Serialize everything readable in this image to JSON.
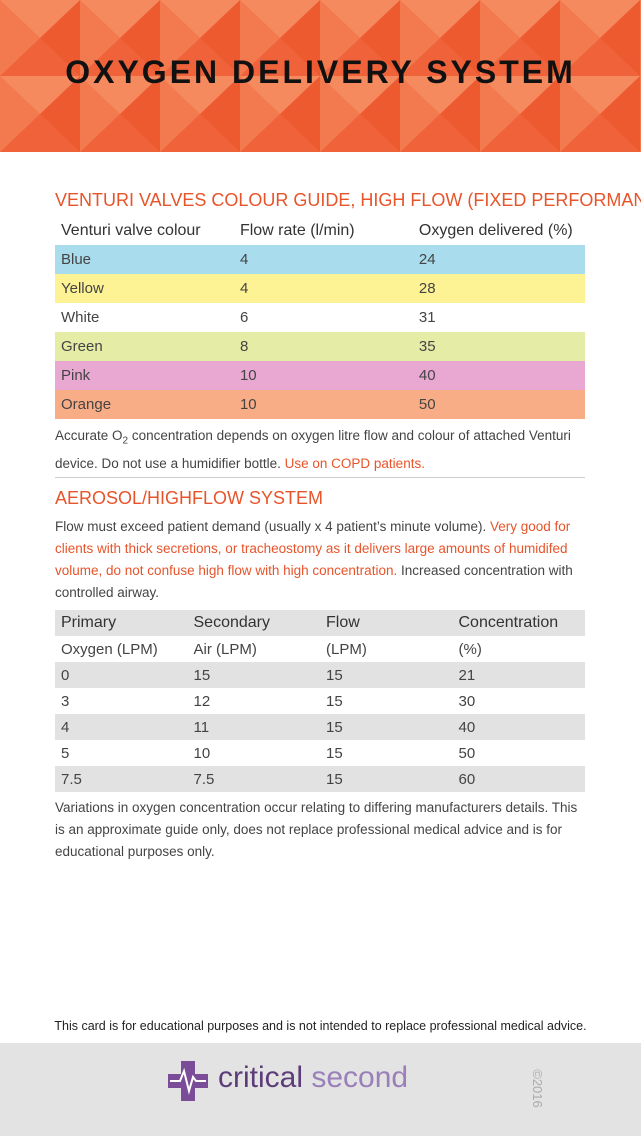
{
  "header": {
    "title": "OXYGEN DELIVERY SYSTEM"
  },
  "venturi": {
    "title": "VENTURI VALVES COLOUR GUIDE, HIGH FLOW (FIXED PERFORMANCE)",
    "columns": [
      "Venturi valve colour",
      "Flow rate (l/min)",
      "Oxygen delivered (%)"
    ],
    "rows": [
      [
        "Blue",
        "4",
        "24"
      ],
      [
        "Yellow",
        "4",
        "28"
      ],
      [
        "White",
        "6",
        "31"
      ],
      [
        "Green",
        "8",
        "35"
      ],
      [
        "Pink",
        "10",
        "40"
      ],
      [
        "Orange",
        "10",
        "50"
      ]
    ],
    "row_colors": [
      "#a9dcec",
      "#fdf294",
      "#ffffff",
      "#e4eca6",
      "#e9a8d2",
      "#f9ad86"
    ],
    "note": {
      "before": "Accurate O",
      "subscript": "2",
      "text": " concentration depends on oxygen litre flow and colour of attached Venturi device. Do not use a humidifier bottle. ",
      "highlight": "Use on COPD patients."
    }
  },
  "aerosol": {
    "title": "AEROSOL/HIGHFLOW SYSTEM",
    "paragraph": {
      "text": "Flow must exceed patient demand (usually x 4 patient’s minute volume). ",
      "highlight": "Very good for clients with thick secretions, or tracheostomy as it delivers large amounts of humidifed volume, do not confuse high flow with high concentration.",
      "after": " Increased concentration with controlled airway."
    },
    "header_rows": [
      [
        "Primary",
        "Secondary",
        "Flow",
        "Concentration"
      ],
      [
        "Oxygen (LPM)",
        "Air (LPM)",
        "(LPM)",
        "(%)"
      ]
    ],
    "rows": [
      [
        "0",
        "15",
        "15",
        "21"
      ],
      [
        "3",
        "12",
        "15",
        "30"
      ],
      [
        "4",
        "11",
        "15",
        "40"
      ],
      [
        "5",
        "10",
        "15",
        "50"
      ],
      [
        "7.5",
        "7.5",
        "15",
        "60"
      ]
    ],
    "note": "Variations in oxygen concentration occur relating to differing manufacturers details. This is an approximate guide only, does not replace professional medical advice and is for educational purposes only."
  },
  "footer": {
    "disclaimer": "This card is for educational purposes and is not intended to replace professional medical advice.",
    "brand_first": "critical",
    "brand_second": "second",
    "copyright": "©2016"
  }
}
